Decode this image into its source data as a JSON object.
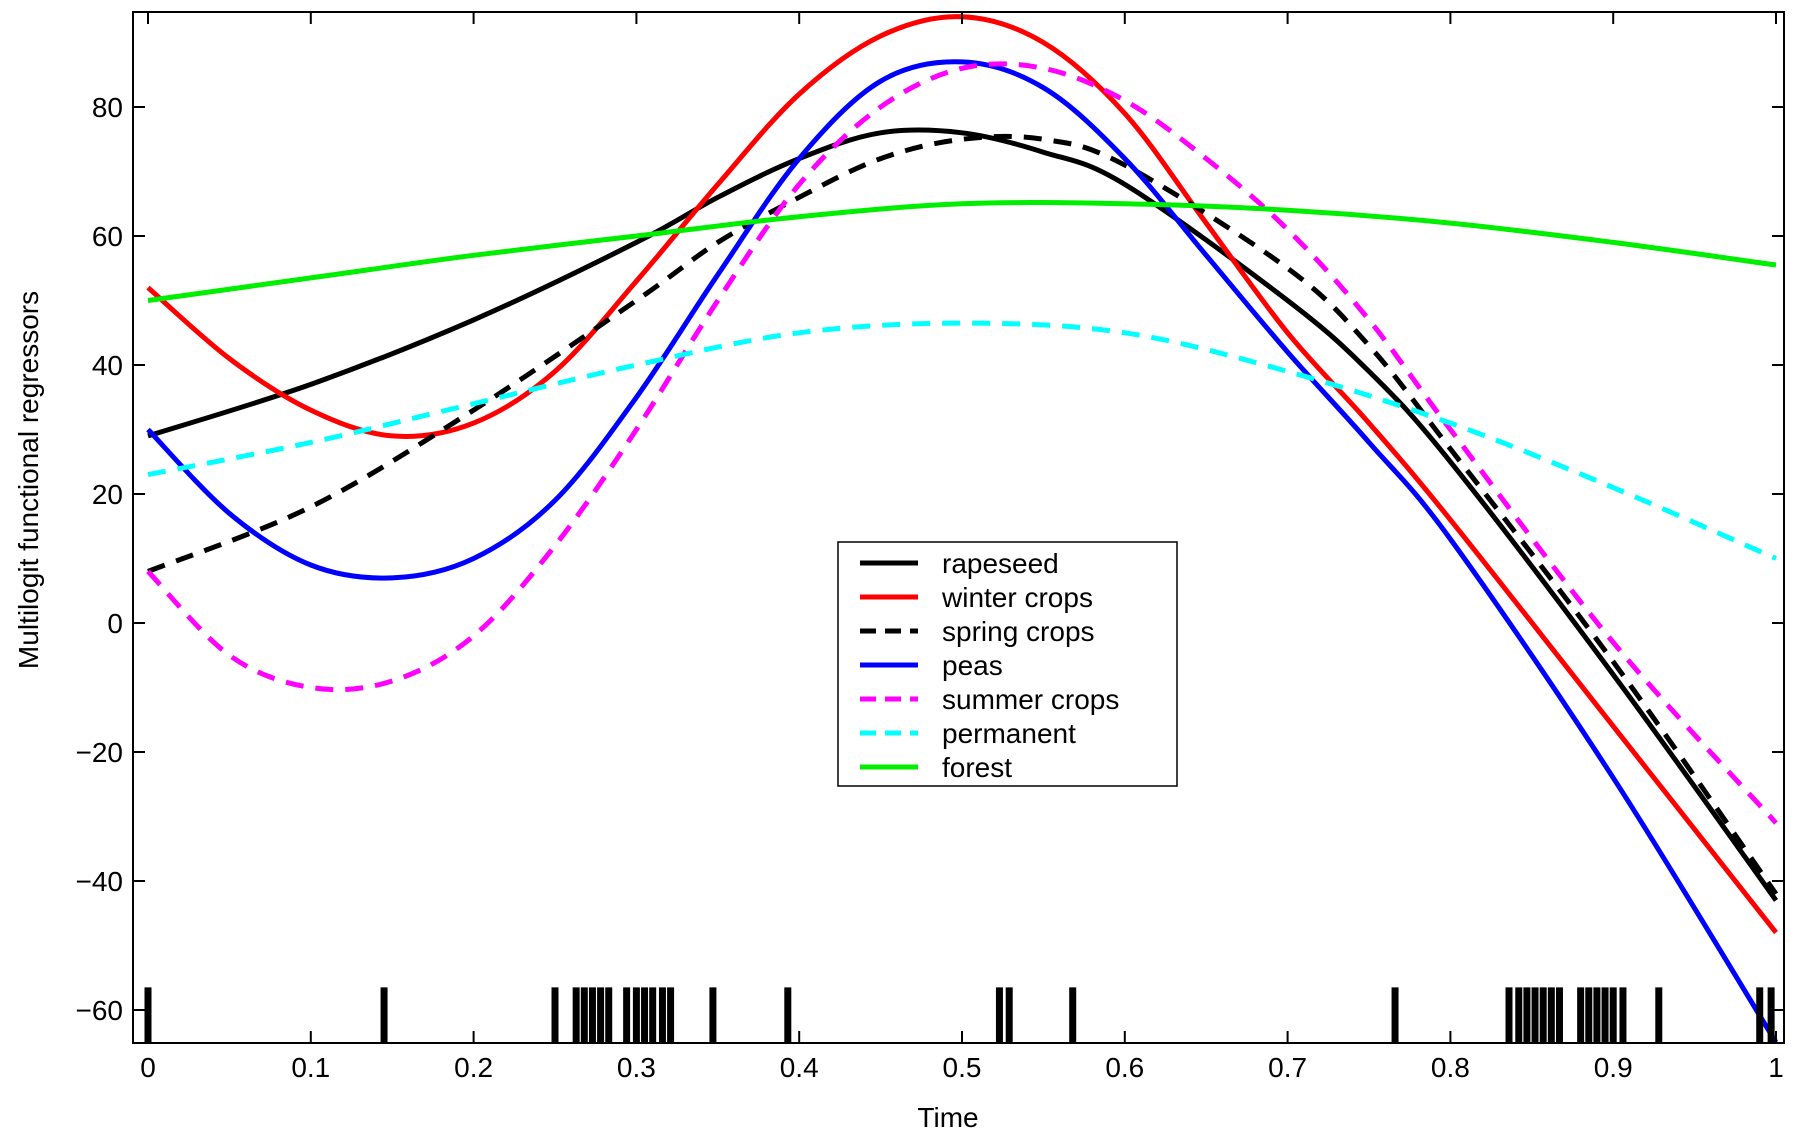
{
  "chart_data": {
    "type": "line",
    "title": "",
    "xlabel": "Time",
    "ylabel": "Multilogit functional regressors",
    "xlim": [
      0,
      1
    ],
    "ylim": [
      -65,
      95
    ],
    "xticks": [
      0,
      0.1,
      0.2,
      0.3,
      0.4,
      0.5,
      0.6,
      0.7,
      0.8,
      0.9,
      1
    ],
    "xtick_labels": [
      "0",
      "0.1",
      "0.2",
      "0.3",
      "0.4",
      "0.5",
      "0.6",
      "0.7",
      "0.8",
      "0.9",
      "1"
    ],
    "yticks": [
      -60,
      -40,
      -20,
      0,
      20,
      40,
      60,
      80
    ],
    "ytick_labels": [
      "−60",
      "−40",
      "−20",
      "0",
      "20",
      "40",
      "60",
      "80"
    ],
    "grid": false,
    "legend_position": "center",
    "series": [
      {
        "name": "rapeseed",
        "color": "#000000",
        "dashed": false,
        "x": [
          0,
          0.1,
          0.2,
          0.3,
          0.35,
          0.4,
          0.45,
          0.5,
          0.55,
          0.6,
          0.7,
          0.75,
          0.8,
          0.9,
          1
        ],
        "y": [
          29,
          37,
          47,
          59,
          66,
          72,
          76,
          76,
          73,
          68,
          50,
          39,
          25,
          -8,
          -43
        ]
      },
      {
        "name": "winter crops",
        "color": "#ff0000",
        "dashed": false,
        "x": [
          0,
          0.05,
          0.1,
          0.15,
          0.2,
          0.25,
          0.3,
          0.35,
          0.4,
          0.45,
          0.5,
          0.55,
          0.6,
          0.65,
          0.7,
          0.75,
          0.8,
          0.9,
          1
        ],
        "y": [
          52,
          41,
          33,
          29,
          31,
          39,
          53,
          68,
          82,
          91,
          94,
          90,
          79,
          62,
          45,
          31,
          16,
          -16,
          -48
        ]
      },
      {
        "name": "spring crops",
        "color": "#000000",
        "dashed": true,
        "x": [
          0,
          0.1,
          0.2,
          0.3,
          0.35,
          0.4,
          0.45,
          0.5,
          0.55,
          0.6,
          0.7,
          0.75,
          0.8,
          0.9,
          1
        ],
        "y": [
          8,
          18,
          33,
          50,
          59,
          66,
          72,
          75,
          75,
          71,
          55,
          43,
          27,
          -6,
          -42
        ]
      },
      {
        "name": "peas",
        "color": "#0000ff",
        "dashed": false,
        "x": [
          0,
          0.05,
          0.1,
          0.15,
          0.2,
          0.25,
          0.3,
          0.35,
          0.4,
          0.45,
          0.5,
          0.55,
          0.6,
          0.65,
          0.7,
          0.75,
          0.8,
          0.9,
          1
        ],
        "y": [
          30,
          17,
          9,
          7,
          10,
          19,
          35,
          54,
          72,
          84,
          87,
          83,
          72,
          57,
          42,
          28,
          13,
          -24,
          -65
        ]
      },
      {
        "name": "summer crops",
        "color": "#ff00ff",
        "dashed": true,
        "x": [
          0,
          0.05,
          0.1,
          0.15,
          0.2,
          0.25,
          0.3,
          0.35,
          0.4,
          0.45,
          0.5,
          0.55,
          0.6,
          0.65,
          0.7,
          0.75,
          0.8,
          0.9,
          1
        ],
        "y": [
          8,
          -5,
          -10,
          -9,
          -2,
          12,
          30,
          50,
          68,
          80,
          86,
          86,
          81,
          72,
          61,
          47,
          30,
          -3,
          -31
        ]
      },
      {
        "name": "permanent",
        "color": "#00ffff",
        "dashed": true,
        "x": [
          0,
          0.1,
          0.2,
          0.3,
          0.4,
          0.5,
          0.6,
          0.7,
          0.8,
          0.9,
          1
        ],
        "y": [
          23,
          28,
          34,
          40,
          45,
          46.5,
          45,
          39,
          31,
          21,
          10
        ]
      },
      {
        "name": "forest",
        "color": "#00ee00",
        "dashed": false,
        "x": [
          0,
          0.1,
          0.2,
          0.3,
          0.4,
          0.5,
          0.6,
          0.7,
          0.8,
          0.9,
          1
        ],
        "y": [
          50,
          53.5,
          57,
          60,
          63,
          65,
          65,
          64,
          62,
          59,
          55.5
        ]
      }
    ],
    "rug": [
      0,
      0.145,
      0.25,
      0.263,
      0.268,
      0.273,
      0.278,
      0.283,
      0.294,
      0.3,
      0.305,
      0.31,
      0.316,
      0.321,
      0.347,
      0.393,
      0.523,
      0.529,
      0.568,
      0.766,
      0.836,
      0.842,
      0.847,
      0.852,
      0.857,
      0.862,
      0.867,
      0.88,
      0.885,
      0.89,
      0.895,
      0.9,
      0.906,
      0.928,
      0.99,
      0.997
    ]
  }
}
